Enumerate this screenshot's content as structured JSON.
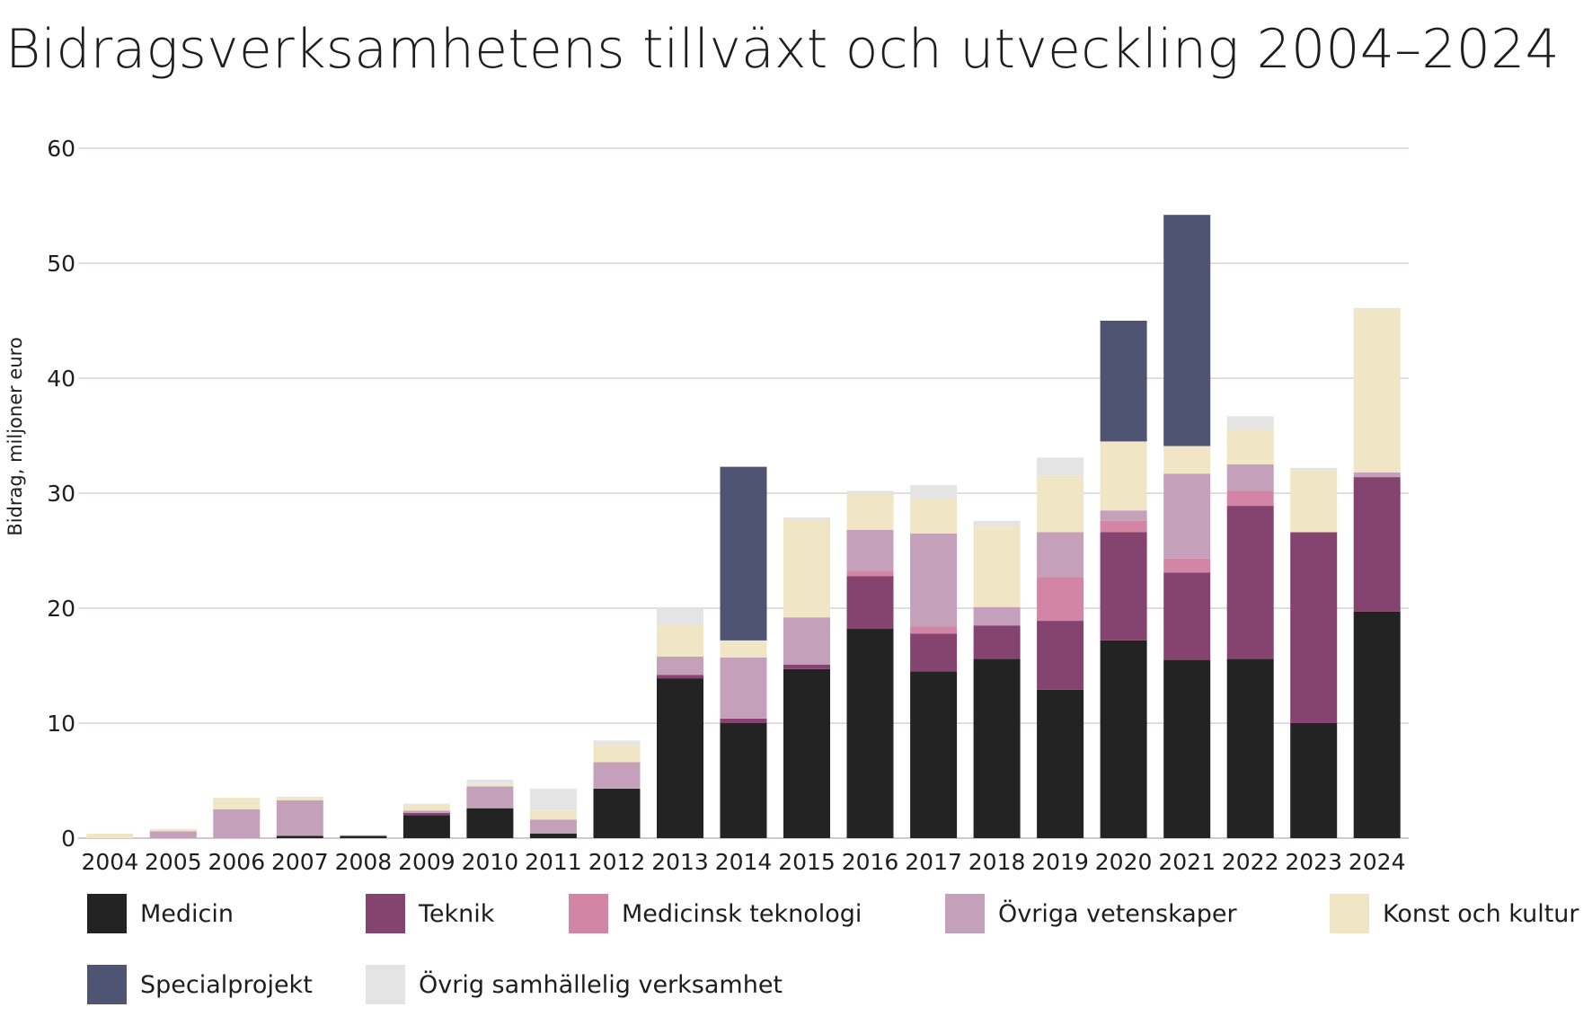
{
  "chart_data": {
    "type": "bar",
    "stacked": true,
    "title": "Bidragsverksamhetens tillväxt och utveckling  2004–2024",
    "ylabel": "Bidrag, miljoner euro",
    "xlabel": "",
    "ylim": [
      0,
      60
    ],
    "yticks": [
      0,
      10,
      20,
      30,
      40,
      50,
      60
    ],
    "grid": "horizontal",
    "legend_position": "bottom",
    "categories": [
      "2004",
      "2005",
      "2006",
      "2007",
      "2008",
      "2009",
      "2010",
      "2011",
      "2012",
      "2013",
      "2014",
      "2015",
      "2016",
      "2017",
      "2018",
      "2019",
      "2020",
      "2021",
      "2022",
      "2023",
      "2024"
    ],
    "series": [
      {
        "name": "Medicin",
        "color": "#232323",
        "values": [
          0,
          0,
          0,
          0.2,
          0.2,
          2.0,
          2.6,
          0.4,
          4.3,
          13.9,
          10.0,
          14.7,
          18.2,
          14.5,
          15.6,
          12.9,
          17.2,
          15.5,
          15.6,
          10.0,
          19.7
        ]
      },
      {
        "name": "Teknik",
        "color": "#84446f",
        "values": [
          0,
          0,
          0,
          0,
          0,
          0.2,
          0,
          0,
          0,
          0.3,
          0.4,
          0.4,
          4.6,
          3.3,
          2.9,
          6.0,
          9.4,
          7.6,
          13.3,
          16.6,
          11.7
        ]
      },
      {
        "name": "Medicinsk teknologi",
        "color": "#d285a5",
        "values": [
          0,
          0,
          0,
          0,
          0,
          0,
          0,
          0,
          0,
          0,
          0,
          0,
          0.4,
          0.6,
          0,
          3.8,
          1.0,
          1.2,
          1.3,
          0,
          0
        ]
      },
      {
        "name": "Övriga vetenskaper",
        "color": "#c5a0ba",
        "values": [
          0,
          0.6,
          2.5,
          3.1,
          0,
          0.2,
          1.9,
          1.2,
          2.3,
          1.6,
          5.3,
          4.1,
          3.6,
          8.1,
          1.6,
          3.9,
          0.9,
          7.4,
          2.3,
          0,
          0.4
        ]
      },
      {
        "name": "Konst och kultur",
        "color": "#f0e5c5",
        "values": [
          0.4,
          0.1,
          1.0,
          0.2,
          0,
          0.5,
          0.2,
          0.8,
          1.5,
          2.7,
          1.5,
          8.5,
          3.2,
          3.0,
          7.0,
          4.9,
          6.0,
          2.4,
          3.0,
          5.4,
          14.2
        ]
      },
      {
        "name": "Specialprojekt",
        "color": "#4f5473",
        "values": [
          0,
          0,
          0,
          0,
          0,
          0,
          0,
          0,
          0,
          0,
          15.1,
          0,
          0,
          0,
          0,
          0,
          10.5,
          20.1,
          0,
          0,
          0
        ]
      },
      {
        "name": "Övrig samhällelig verksamhet",
        "color": "#e4e4e4",
        "values": [
          0,
          0.1,
          0,
          0.1,
          0.1,
          0.1,
          0.4,
          1.9,
          0.4,
          1.5,
          0,
          0.2,
          0.2,
          1.2,
          0.5,
          1.6,
          0,
          0,
          1.2,
          0.2,
          0.1
        ]
      }
    ]
  }
}
